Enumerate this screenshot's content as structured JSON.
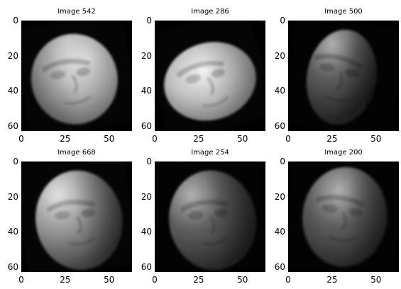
{
  "figure": {
    "background": "#ffffff",
    "colormap": "gray"
  },
  "chart_data": [
    {
      "type": "image",
      "title": "Image 542",
      "xlim": [
        0,
        63
      ],
      "ylim": [
        63,
        0
      ],
      "xticks": [
        0,
        25,
        50
      ],
      "yticks": [
        0,
        20,
        40,
        60
      ],
      "pose": "frontal-down",
      "brightness": "high"
    },
    {
      "type": "image",
      "title": "Image 286",
      "xlim": [
        0,
        63
      ],
      "ylim": [
        63,
        0
      ],
      "xticks": [
        0,
        25,
        50
      ],
      "yticks": [
        0,
        20,
        40,
        60
      ],
      "pose": "left-profile",
      "brightness": "high"
    },
    {
      "type": "image",
      "title": "Image 500",
      "xlim": [
        0,
        63
      ],
      "ylim": [
        63,
        0
      ],
      "xticks": [
        0,
        25,
        50
      ],
      "yticks": [
        0,
        20,
        40,
        60
      ],
      "pose": "left-three-quarter",
      "brightness": "low"
    },
    {
      "type": "image",
      "title": "Image 668",
      "xlim": [
        0,
        63
      ],
      "ylim": [
        63,
        0
      ],
      "xticks": [
        0,
        25,
        50
      ],
      "yticks": [
        0,
        20,
        40,
        60
      ],
      "pose": "up-tilt",
      "brightness": "medium"
    },
    {
      "type": "image",
      "title": "Image 254",
      "xlim": [
        0,
        63
      ],
      "ylim": [
        63,
        0
      ],
      "xticks": [
        0,
        25,
        50
      ],
      "yticks": [
        0,
        20,
        40,
        60
      ],
      "pose": "up-tilt",
      "brightness": "low"
    },
    {
      "type": "image",
      "title": "Image 200",
      "xlim": [
        0,
        63
      ],
      "ylim": [
        63,
        0
      ],
      "xticks": [
        0,
        25,
        50
      ],
      "yticks": [
        0,
        20,
        40,
        60
      ],
      "pose": "right-up",
      "brightness": "low"
    }
  ]
}
